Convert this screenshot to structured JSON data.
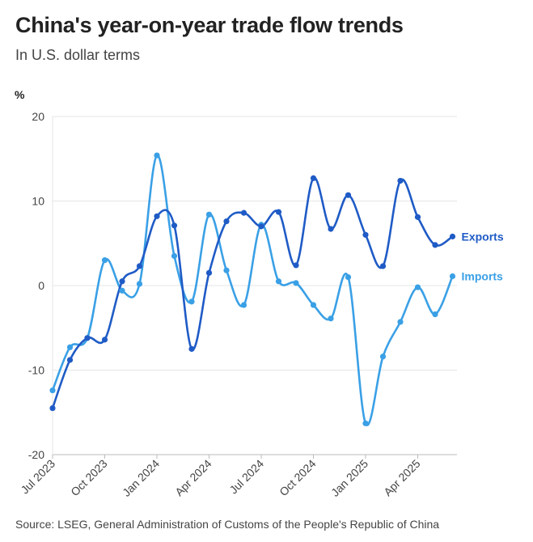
{
  "header": {
    "title": "China's year-on-year trade flow trends",
    "subtitle": "In U.S. dollar terms"
  },
  "footer": {
    "source": "Source: LSEG, General Administration of Customs of the People's Republic of China"
  },
  "colors": {
    "exports": "#1f5bc6",
    "imports": "#3aa0e6",
    "grid": "#e6e6e6",
    "axis": "#bbbbbb"
  },
  "chart_data": {
    "type": "line",
    "ylabel": "%",
    "ylim": [
      -20,
      20
    ],
    "yticks": [
      "20",
      "10",
      "0",
      "-10",
      "-20"
    ],
    "ytick_values": [
      20,
      10,
      0,
      -10,
      -20
    ],
    "x": [
      "2023-07",
      "2023-08",
      "2023-09",
      "2023-10",
      "2023-11",
      "2023-12",
      "2024-01",
      "2024-02",
      "2024-03",
      "2024-04",
      "2024-05",
      "2024-06",
      "2024-07",
      "2024-08",
      "2024-09",
      "2024-10",
      "2024-11",
      "2024-12",
      "2025-01",
      "2025-02",
      "2025-03",
      "2025-04",
      "2025-05",
      "2025-06"
    ],
    "xticks": [
      "Jul 2023",
      "Oct 2023",
      "Jan 2024",
      "Apr 2024",
      "Jul 2024",
      "Oct 2024",
      "Jan 2025",
      "Apr 2025"
    ],
    "xtick_index": [
      0,
      3,
      6,
      9,
      12,
      15,
      18,
      21
    ],
    "grid": true,
    "legend": "inline-right",
    "series": [
      {
        "name": "Exports",
        "values": [
          -14.5,
          -8.8,
          -6.2,
          -6.4,
          0.5,
          2.3,
          8.2,
          7.1,
          -7.5,
          1.5,
          7.6,
          8.6,
          7.0,
          8.7,
          2.4,
          12.7,
          6.7,
          10.7,
          6.0,
          2.3,
          12.4,
          8.1,
          4.8,
          5.8
        ]
      },
      {
        "name": "Imports",
        "values": [
          -12.4,
          -7.3,
          -6.2,
          3.0,
          -0.6,
          0.2,
          15.4,
          3.5,
          -1.9,
          8.4,
          1.8,
          -2.3,
          7.2,
          0.5,
          0.3,
          -2.3,
          -3.9,
          1.0,
          -16.3,
          -8.4,
          -4.3,
          -0.2,
          -3.4,
          1.1
        ]
      }
    ]
  }
}
